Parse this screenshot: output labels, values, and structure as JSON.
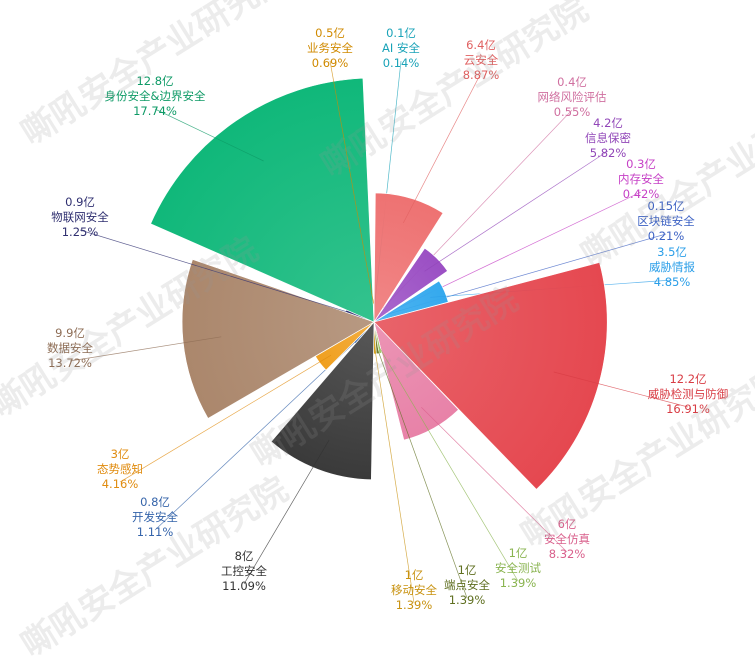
{
  "watermark": "嘶吼安全产业研究院",
  "chart_data": {
    "type": "pie",
    "variant": "rose",
    "title": "",
    "slices": [
      {
        "name": "AI 安全",
        "value_text": "0.1亿",
        "value": 0.1,
        "percent": "0.14%",
        "color": "#29b5c8",
        "label_color": "#1aa3b8"
      },
      {
        "name": "云安全",
        "value_text": "6.4亿",
        "value": 6.4,
        "percent": "8.87%",
        "color": "#ee7272",
        "label_color": "#e06060"
      },
      {
        "name": "网络风险评估",
        "value_text": "0.4亿",
        "value": 0.4,
        "percent": "0.55%",
        "color": "#d77ba0",
        "label_color": "#d070a0"
      },
      {
        "name": "信息保密",
        "value_text": "4.2亿",
        "value": 4.2,
        "percent": "5.82%",
        "color": "#9b4fc4",
        "label_color": "#9146b8"
      },
      {
        "name": "内存安全",
        "value_text": "0.3亿",
        "value": 0.3,
        "percent": "0.42%",
        "color": "#cf52cf",
        "label_color": "#c640c6"
      },
      {
        "name": "区块链安全",
        "value_text": "0.15亿",
        "value": 0.15,
        "percent": "0.21%",
        "color": "#4a72d0",
        "label_color": "#3d62c4"
      },
      {
        "name": "威胁情报",
        "value_text": "3.5亿",
        "value": 3.5,
        "percent": "4.85%",
        "color": "#34a9ee",
        "label_color": "#2a9ee8"
      },
      {
        "name": "威胁检测与防御",
        "value_text": "12.2亿",
        "value": 12.2,
        "percent": "16.91%",
        "color": "#e54850",
        "label_color": "#d83c44"
      },
      {
        "name": "安全仿真",
        "value_text": "6亿",
        "value": 6,
        "percent": "8.32%",
        "color": "#e882a8",
        "label_color": "#d9608c"
      },
      {
        "name": "安全测试",
        "value_text": "1亿",
        "value": 1,
        "percent": "1.39%",
        "color": "#a2c86a",
        "label_color": "#8ab450"
      },
      {
        "name": "端点安全",
        "value_text": "1亿",
        "value": 1,
        "percent": "1.39%",
        "color": "#6f7f2a",
        "label_color": "#5f6f20"
      },
      {
        "name": "移动安全",
        "value_text": "1亿",
        "value": 1,
        "percent": "1.39%",
        "color": "#d6a21e",
        "label_color": "#c89210"
      },
      {
        "name": "工控安全",
        "value_text": "8亿",
        "value": 8,
        "percent": "11.09%",
        "color": "#3a3a3a",
        "label_color": "#333333"
      },
      {
        "name": "开发安全",
        "value_text": "0.8亿",
        "value": 0.8,
        "percent": "1.11%",
        "color": "#3f6fb5",
        "label_color": "#3564aa"
      },
      {
        "name": "态势感知",
        "value_text": "3亿",
        "value": 3,
        "percent": "4.16%",
        "color": "#f0a020",
        "label_color": "#e08c10"
      },
      {
        "name": "数据安全",
        "value_text": "9.9亿",
        "value": 9.9,
        "percent": "13.72%",
        "color": "#ab876c",
        "label_color": "#8d6c54"
      },
      {
        "name": "物联网安全",
        "value_text": "0.9亿",
        "value": 0.9,
        "percent": "1.25%",
        "color": "#383878",
        "label_color": "#2f2f70"
      },
      {
        "name": "身份安全&边界安全",
        "value_text": "12.8亿",
        "value": 12.8,
        "percent": "17.74%",
        "color": "#10b87a",
        "label_color": "#0e9a66"
      },
      {
        "name": "业务安全",
        "value_text": "0.5亿",
        "value": 0.5,
        "percent": "0.69%",
        "color": "#e09a10",
        "label_color": "#d08a00"
      }
    ]
  }
}
